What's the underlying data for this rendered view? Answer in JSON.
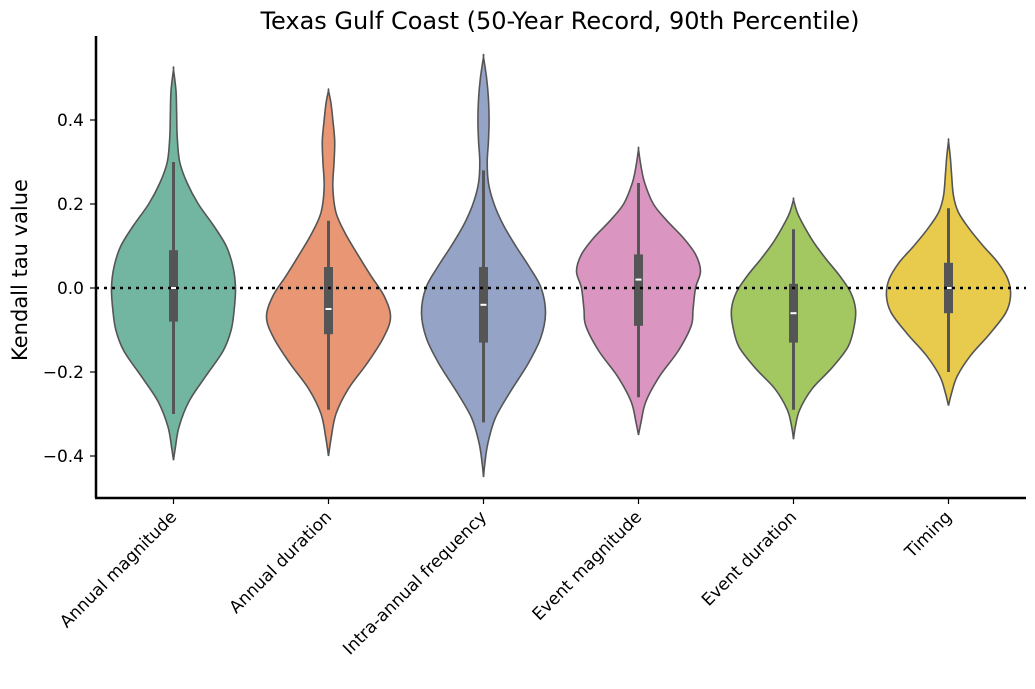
{
  "chart_data": {
    "type": "violin",
    "title": "Texas Gulf Coast (50-Year Record, 90th Percentile)",
    "xlabel": "",
    "ylabel": "Kendall tau value",
    "ylim": [
      -0.5,
      0.6
    ],
    "yticks": [
      -0.4,
      -0.2,
      0.0,
      0.2,
      0.4
    ],
    "ytick_labels": [
      "−0.4",
      "−0.2",
      "0.0",
      "0.2",
      "0.4"
    ],
    "reference_line": {
      "y": 0.0,
      "style": "dotted"
    },
    "grid": false,
    "categories": [
      "Annual magnitude",
      "Annual duration",
      "Intra-annual frequency",
      "Event magnitude",
      "Event duration",
      "Timing"
    ],
    "series": [
      {
        "category": "Annual magnitude",
        "color": "#72B6A1",
        "min": -0.3,
        "q1": -0.08,
        "median": 0.0,
        "q3": 0.09,
        "max": 0.3,
        "extent": [
          -0.41,
          0.52
        ],
        "density": [
          [
            -0.41,
            0.0
          ],
          [
            -0.38,
            0.03
          ],
          [
            -0.33,
            0.09
          ],
          [
            -0.27,
            0.25
          ],
          [
            -0.21,
            0.52
          ],
          [
            -0.15,
            0.8
          ],
          [
            -0.1,
            0.93
          ],
          [
            -0.05,
            0.98
          ],
          [
            0.0,
            1.0
          ],
          [
            0.05,
            0.96
          ],
          [
            0.1,
            0.85
          ],
          [
            0.15,
            0.64
          ],
          [
            0.2,
            0.4
          ],
          [
            0.25,
            0.22
          ],
          [
            0.3,
            0.1
          ],
          [
            0.36,
            0.06
          ],
          [
            0.42,
            0.05
          ],
          [
            0.47,
            0.04
          ],
          [
            0.52,
            0.0
          ]
        ]
      },
      {
        "category": "Annual duration",
        "color": "#E99675",
        "min": -0.29,
        "q1": -0.11,
        "median": -0.05,
        "q3": 0.05,
        "max": 0.16,
        "extent": [
          -0.4,
          0.47
        ],
        "density": [
          [
            -0.4,
            0.0
          ],
          [
            -0.36,
            0.04
          ],
          [
            -0.3,
            0.12
          ],
          [
            -0.24,
            0.32
          ],
          [
            -0.18,
            0.62
          ],
          [
            -0.12,
            0.88
          ],
          [
            -0.07,
            1.0
          ],
          [
            -0.02,
            0.9
          ],
          [
            0.03,
            0.68
          ],
          [
            0.08,
            0.47
          ],
          [
            0.13,
            0.27
          ],
          [
            0.18,
            0.12
          ],
          [
            0.24,
            0.07
          ],
          [
            0.3,
            0.09
          ],
          [
            0.35,
            0.1
          ],
          [
            0.4,
            0.07
          ],
          [
            0.44,
            0.04
          ],
          [
            0.47,
            0.0
          ]
        ]
      },
      {
        "category": "Intra-annual frequency",
        "color": "#95A3C7",
        "min": -0.32,
        "q1": -0.13,
        "median": -0.04,
        "q3": 0.05,
        "max": 0.28,
        "extent": [
          -0.45,
          0.55
        ],
        "density": [
          [
            -0.45,
            0.0
          ],
          [
            -0.42,
            0.02
          ],
          [
            -0.37,
            0.07
          ],
          [
            -0.31,
            0.19
          ],
          [
            -0.25,
            0.42
          ],
          [
            -0.18,
            0.72
          ],
          [
            -0.12,
            0.92
          ],
          [
            -0.06,
            1.0
          ],
          [
            0.0,
            0.93
          ],
          [
            0.05,
            0.74
          ],
          [
            0.1,
            0.52
          ],
          [
            0.15,
            0.32
          ],
          [
            0.2,
            0.17
          ],
          [
            0.25,
            0.08
          ],
          [
            0.3,
            0.06
          ],
          [
            0.35,
            0.08
          ],
          [
            0.4,
            0.09
          ],
          [
            0.45,
            0.08
          ],
          [
            0.5,
            0.05
          ],
          [
            0.55,
            0.0
          ]
        ]
      },
      {
        "category": "Event magnitude",
        "color": "#DA96C1",
        "min": -0.26,
        "q1": -0.09,
        "median": 0.02,
        "q3": 0.08,
        "max": 0.25,
        "extent": [
          -0.35,
          0.33
        ],
        "density": [
          [
            -0.35,
            0.0
          ],
          [
            -0.32,
            0.04
          ],
          [
            -0.27,
            0.12
          ],
          [
            -0.21,
            0.34
          ],
          [
            -0.15,
            0.64
          ],
          [
            -0.09,
            0.85
          ],
          [
            -0.05,
            0.88
          ],
          [
            0.0,
            0.92
          ],
          [
            0.04,
            1.0
          ],
          [
            0.08,
            0.92
          ],
          [
            0.12,
            0.72
          ],
          [
            0.16,
            0.46
          ],
          [
            0.2,
            0.24
          ],
          [
            0.25,
            0.1
          ],
          [
            0.29,
            0.04
          ],
          [
            0.33,
            0.0
          ]
        ]
      },
      {
        "category": "Event duration",
        "color": "#A3C862",
        "min": -0.29,
        "q1": -0.13,
        "median": -0.06,
        "q3": 0.01,
        "max": 0.14,
        "extent": [
          -0.36,
          0.21
        ],
        "density": [
          [
            -0.36,
            0.0
          ],
          [
            -0.33,
            0.03
          ],
          [
            -0.29,
            0.1
          ],
          [
            -0.24,
            0.3
          ],
          [
            -0.19,
            0.62
          ],
          [
            -0.14,
            0.88
          ],
          [
            -0.09,
            0.98
          ],
          [
            -0.05,
            1.0
          ],
          [
            -0.01,
            0.92
          ],
          [
            0.03,
            0.74
          ],
          [
            0.07,
            0.52
          ],
          [
            0.11,
            0.32
          ],
          [
            0.15,
            0.16
          ],
          [
            0.18,
            0.06
          ],
          [
            0.21,
            0.0
          ]
        ]
      },
      {
        "category": "Timing",
        "color": "#E8CB4D",
        "min": -0.2,
        "q1": -0.06,
        "median": 0.0,
        "q3": 0.06,
        "max": 0.19,
        "extent": [
          -0.28,
          0.35
        ],
        "density": [
          [
            -0.28,
            0.0
          ],
          [
            -0.25,
            0.05
          ],
          [
            -0.21,
            0.14
          ],
          [
            -0.16,
            0.36
          ],
          [
            -0.11,
            0.66
          ],
          [
            -0.06,
            0.92
          ],
          [
            -0.02,
            1.0
          ],
          [
            0.02,
            0.96
          ],
          [
            0.06,
            0.8
          ],
          [
            0.1,
            0.56
          ],
          [
            0.14,
            0.34
          ],
          [
            0.18,
            0.16
          ],
          [
            0.22,
            0.08
          ],
          [
            0.27,
            0.05
          ],
          [
            0.31,
            0.03
          ],
          [
            0.35,
            0.0
          ]
        ]
      }
    ]
  }
}
